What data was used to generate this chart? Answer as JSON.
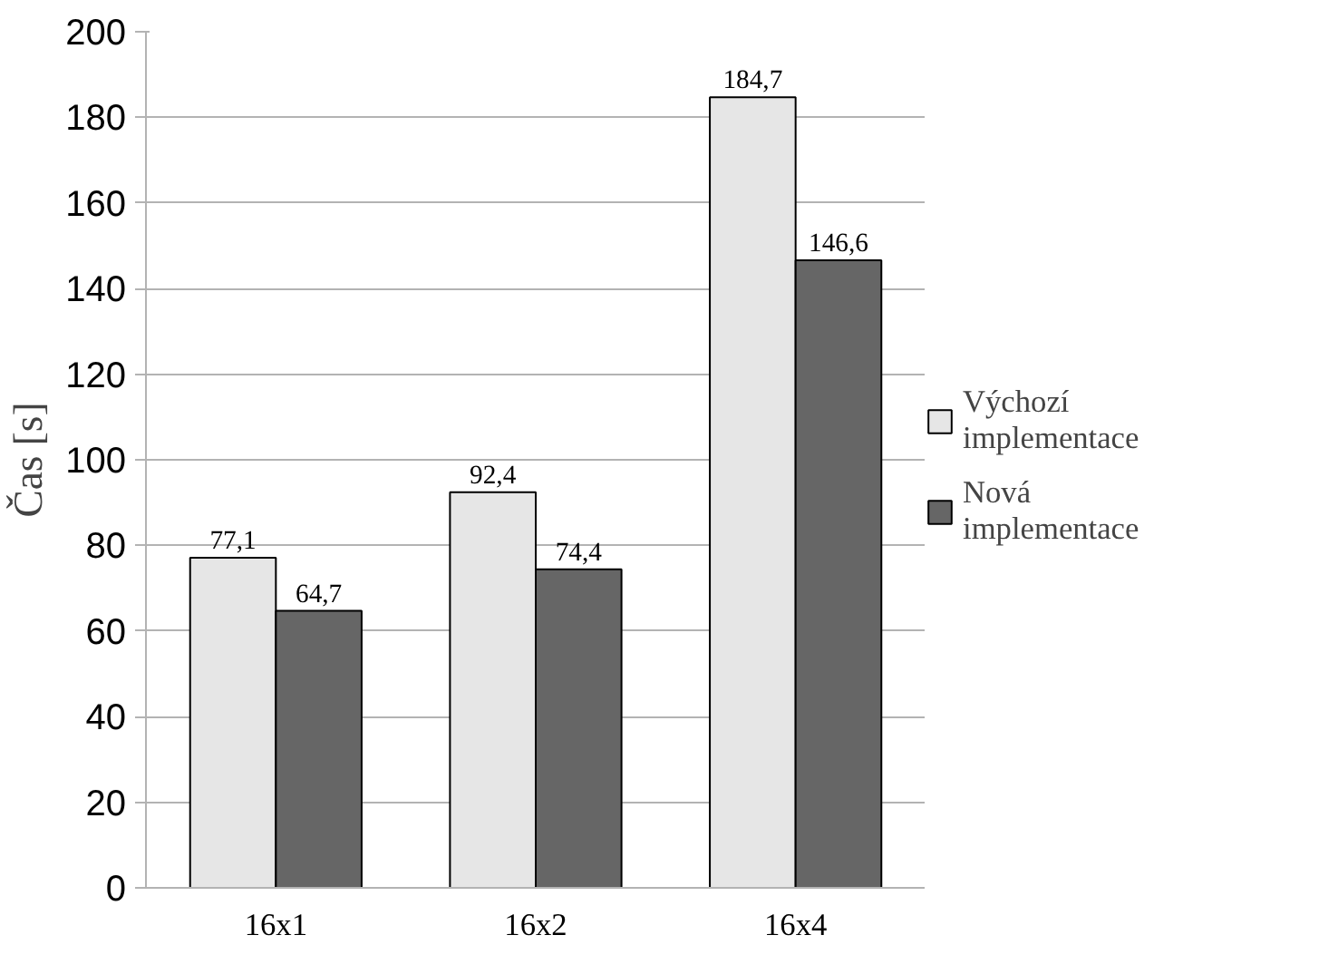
{
  "chart_data": {
    "type": "bar",
    "ylabel": "Čas [s]",
    "categories": [
      "16x1",
      "16x2",
      "16x4"
    ],
    "series": [
      {
        "name": "Výchozí implementace",
        "color": "#e6e6e6",
        "values": [
          77.1,
          92.4,
          184.7
        ],
        "value_labels": [
          "77,1",
          "92,4",
          "184,7"
        ]
      },
      {
        "name": "Nová implementace",
        "color": "#666666",
        "values": [
          64.7,
          74.4,
          146.6
        ],
        "value_labels": [
          "64,7",
          "74,4",
          "146,6"
        ]
      }
    ],
    "ylim": [
      0,
      200
    ],
    "yticks": [
      0,
      20,
      40,
      60,
      80,
      100,
      120,
      140,
      160,
      180,
      200
    ],
    "grid": "y",
    "legend": "right"
  }
}
